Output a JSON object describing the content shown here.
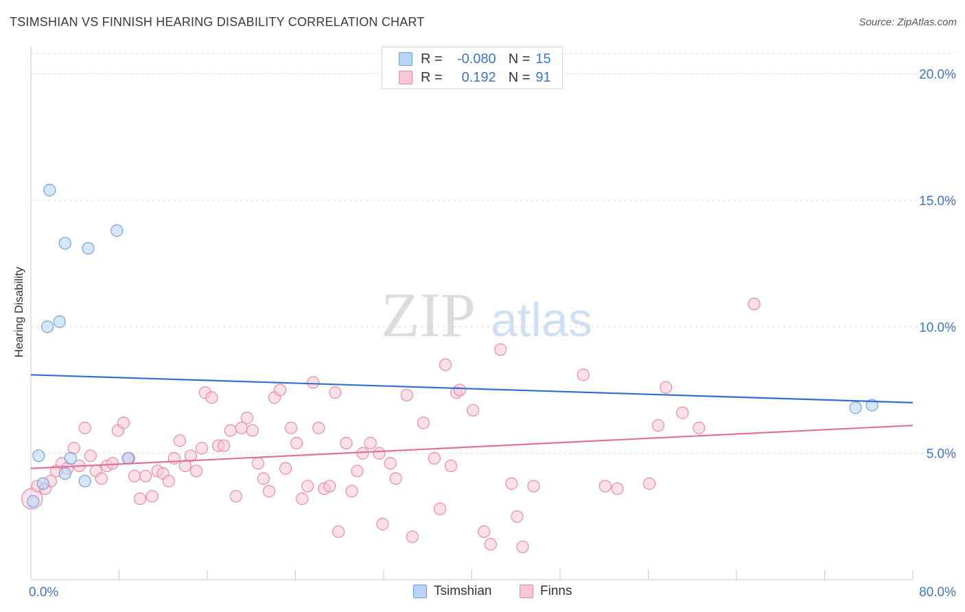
{
  "title": "TSIMSHIAN VS FINNISH HEARING DISABILITY CORRELATION CHART",
  "source": "Source: ZipAtlas.com",
  "watermark": {
    "zip": "ZIP",
    "atlas": "atlas"
  },
  "legend": {
    "rows": [
      {
        "r_label": "R =",
        "r_value": "-0.080",
        "n_label": "N =",
        "n_value": "15",
        "color": "#6fa0dc",
        "fill": "#b7d3f5"
      },
      {
        "r_label": "R =",
        "r_value": "0.192",
        "n_label": "N =",
        "n_value": "91",
        "color": "#e889a8",
        "fill": "#f9c6d5"
      }
    ]
  },
  "bottom_legend": {
    "tsimshian": "Tsimshian",
    "finns": "Finns"
  },
  "chart_data": {
    "type": "scatter",
    "title": "TSIMSHIAN VS FINNISH HEARING DISABILITY CORRELATION CHART",
    "xlabel": "",
    "ylabel": "Hearing Disability",
    "xlim": [
      0,
      80
    ],
    "ylim": [
      0,
      20.8
    ],
    "x_tick_labels": [
      "0.0%",
      "80.0%"
    ],
    "y_tick_labels": [
      "5.0%",
      "10.0%",
      "15.0%",
      "20.0%"
    ],
    "y_ticks": [
      5,
      10,
      15,
      20
    ],
    "grid": true,
    "legend_position": "top-center",
    "series": [
      {
        "name": "Tsimshian",
        "color": "#6fa0dc",
        "fill": "#b7d3f5",
        "trend": {
          "x": [
            0,
            80
          ],
          "y": [
            8.1,
            7.0
          ],
          "color": "#2f6fd0"
        },
        "points": [
          [
            0.2,
            3.1
          ],
          [
            0.7,
            4.9
          ],
          [
            1.1,
            3.8
          ],
          [
            1.5,
            10.0
          ],
          [
            1.7,
            15.4
          ],
          [
            2.6,
            10.2
          ],
          [
            3.1,
            13.3
          ],
          [
            3.1,
            4.2
          ],
          [
            3.6,
            4.8
          ],
          [
            4.9,
            3.9
          ],
          [
            5.2,
            13.1
          ],
          [
            7.8,
            13.8
          ],
          [
            8.8,
            4.8
          ],
          [
            74.8,
            6.8
          ],
          [
            76.3,
            6.9
          ]
        ]
      },
      {
        "name": "Finns",
        "color": "#e889a8",
        "fill": "#f9c6d5",
        "trend": {
          "x": [
            0,
            80
          ],
          "y": [
            4.4,
            6.1
          ],
          "color": "#e0709a"
        },
        "points": [
          [
            0.1,
            3.2
          ],
          [
            0.6,
            3.7
          ],
          [
            1.3,
            3.6
          ],
          [
            1.8,
            3.9
          ],
          [
            2.3,
            4.3
          ],
          [
            2.8,
            4.6
          ],
          [
            3.3,
            4.4
          ],
          [
            3.9,
            5.2
          ],
          [
            4.4,
            4.5
          ],
          [
            4.9,
            6.0
          ],
          [
            5.4,
            4.9
          ],
          [
            5.9,
            4.3
          ],
          [
            6.4,
            4.0
          ],
          [
            6.9,
            4.5
          ],
          [
            7.4,
            4.6
          ],
          [
            7.9,
            5.9
          ],
          [
            8.4,
            6.2
          ],
          [
            8.9,
            4.8
          ],
          [
            9.4,
            4.1
          ],
          [
            9.9,
            3.2
          ],
          [
            10.4,
            4.1
          ],
          [
            11.0,
            3.3
          ],
          [
            11.5,
            4.3
          ],
          [
            12.0,
            4.2
          ],
          [
            12.5,
            3.9
          ],
          [
            13.0,
            4.8
          ],
          [
            13.5,
            5.5
          ],
          [
            14.0,
            4.5
          ],
          [
            14.5,
            4.9
          ],
          [
            15.0,
            4.3
          ],
          [
            15.5,
            5.2
          ],
          [
            15.8,
            7.4
          ],
          [
            16.4,
            7.2
          ],
          [
            17.0,
            5.3
          ],
          [
            17.5,
            5.3
          ],
          [
            18.1,
            5.9
          ],
          [
            18.6,
            3.3
          ],
          [
            19.1,
            6.0
          ],
          [
            19.6,
            6.4
          ],
          [
            20.1,
            5.9
          ],
          [
            20.6,
            4.6
          ],
          [
            21.1,
            4.0
          ],
          [
            21.6,
            3.5
          ],
          [
            22.1,
            7.2
          ],
          [
            22.6,
            7.5
          ],
          [
            23.1,
            4.4
          ],
          [
            23.6,
            6.0
          ],
          [
            24.1,
            5.4
          ],
          [
            24.6,
            3.2
          ],
          [
            25.1,
            3.7
          ],
          [
            25.6,
            7.8
          ],
          [
            26.1,
            6.0
          ],
          [
            26.6,
            3.6
          ],
          [
            27.1,
            3.7
          ],
          [
            27.6,
            7.4
          ],
          [
            27.9,
            1.9
          ],
          [
            28.6,
            5.4
          ],
          [
            29.1,
            3.5
          ],
          [
            29.6,
            4.3
          ],
          [
            30.1,
            5.0
          ],
          [
            30.8,
            5.4
          ],
          [
            31.6,
            5.0
          ],
          [
            31.9,
            2.2
          ],
          [
            32.6,
            4.6
          ],
          [
            33.1,
            4.0
          ],
          [
            34.1,
            7.3
          ],
          [
            34.6,
            1.7
          ],
          [
            35.6,
            6.2
          ],
          [
            36.6,
            4.8
          ],
          [
            37.1,
            2.8
          ],
          [
            37.6,
            8.5
          ],
          [
            38.1,
            4.5
          ],
          [
            38.6,
            7.4
          ],
          [
            38.9,
            7.5
          ],
          [
            40.1,
            6.7
          ],
          [
            41.1,
            1.9
          ],
          [
            41.7,
            1.4
          ],
          [
            42.6,
            9.1
          ],
          [
            43.6,
            3.8
          ],
          [
            44.1,
            2.5
          ],
          [
            44.6,
            1.3
          ],
          [
            45.6,
            3.7
          ],
          [
            50.1,
            8.1
          ],
          [
            52.1,
            3.7
          ],
          [
            53.2,
            3.6
          ],
          [
            56.1,
            3.8
          ],
          [
            56.9,
            6.1
          ],
          [
            57.6,
            7.6
          ],
          [
            59.1,
            6.6
          ],
          [
            60.6,
            6.0
          ],
          [
            65.6,
            10.9
          ]
        ]
      }
    ]
  }
}
